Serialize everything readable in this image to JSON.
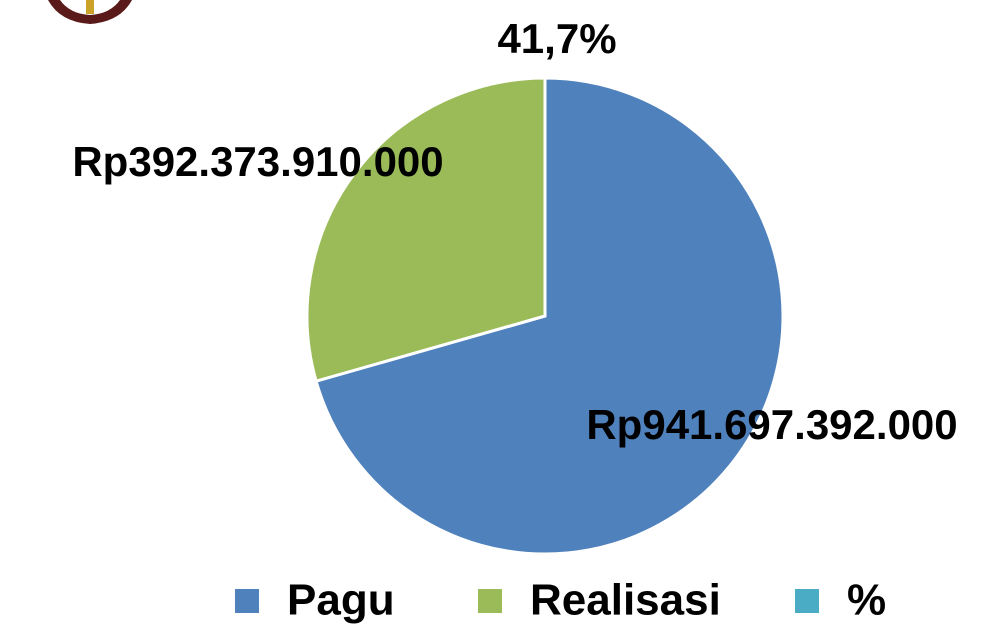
{
  "chart_data": {
    "type": "pie",
    "categories": [
      "Pagu",
      "Realisasi",
      "%"
    ],
    "values": [
      941697392000,
      392373910000,
      41.7
    ],
    "value_labels": [
      "Rp941.697.392.000",
      "Rp392.373.910.000",
      "41,7%"
    ],
    "colors": [
      "#4f81bd",
      "#9bbb59",
      "#4bacc6"
    ],
    "legend": "bottom"
  }
}
